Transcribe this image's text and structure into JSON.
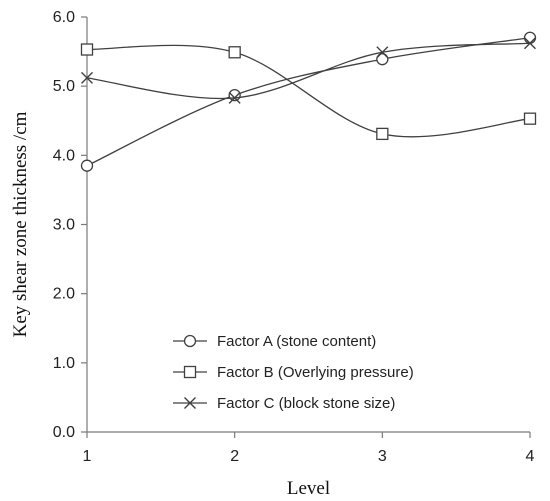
{
  "chart_data": {
    "type": "line",
    "xlabel": "Level",
    "ylabel": "Key shear zone thickness /cm",
    "categories": [
      "1",
      "2",
      "3",
      "4"
    ],
    "x": [
      1,
      2,
      3,
      4
    ],
    "ylim": [
      0,
      6
    ],
    "yticks": [
      "0.0",
      "1.0",
      "2.0",
      "3.0",
      "4.0",
      "5.0",
      "6.0"
    ],
    "grid": false,
    "legend_position": "bottom-center",
    "smooth": true,
    "series": [
      {
        "name": "Factor A (stone content)",
        "marker": "circle",
        "values": [
          3.85,
          4.87,
          5.39,
          5.7
        ]
      },
      {
        "name": "Factor B (Overlying pressure)",
        "marker": "square",
        "values": [
          5.53,
          5.49,
          4.31,
          4.53
        ]
      },
      {
        "name": "Factor C (block stone size)",
        "marker": "x",
        "values": [
          5.12,
          4.83,
          5.49,
          5.62
        ]
      }
    ],
    "line_color": "#404040"
  }
}
